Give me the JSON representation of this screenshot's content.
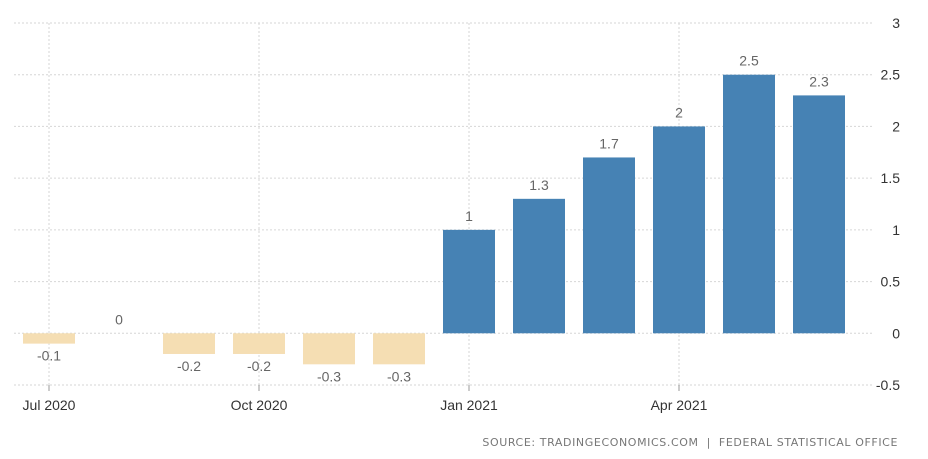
{
  "chart_data": {
    "type": "bar",
    "categories": [
      "2020-07",
      "2020-08",
      "2020-09",
      "2020-10",
      "2020-11",
      "2020-12",
      "2021-01",
      "2021-02",
      "2021-03",
      "2021-04",
      "2021-05",
      "2021-06"
    ],
    "values": [
      -0.1,
      0,
      -0.2,
      -0.2,
      -0.3,
      -0.3,
      1,
      1.3,
      1.7,
      2,
      2.5,
      2.3
    ],
    "value_labels": [
      "-0.1",
      "0",
      "-0.2",
      "-0.2",
      "-0.3",
      "-0.3",
      "1",
      "1.3",
      "1.7",
      "2",
      "2.5",
      "2.3"
    ],
    "x_tick_labels": [
      {
        "category": "2020-07",
        "label": "Jul 2020"
      },
      {
        "category": "2020-10",
        "label": "Oct 2020"
      },
      {
        "category": "2021-01",
        "label": "Jan 2021"
      },
      {
        "category": "2021-04",
        "label": "Apr 2021"
      }
    ],
    "y_ticks": [
      3,
      2.5,
      2,
      1.5,
      1,
      0.5,
      0,
      -0.5
    ],
    "y_tick_labels": [
      "3",
      "2.5",
      "2",
      "1.5",
      "1",
      "0.5",
      "0",
      "-0.5"
    ],
    "ylim": [
      -0.5,
      3
    ],
    "y_axis_side": "right",
    "grid": true,
    "title": "",
    "xlabel": "",
    "ylabel": "",
    "colors": {
      "positive": "#4682b4",
      "negative": "#f5deb3",
      "grid": "#d6d6d6",
      "text": "#666666"
    }
  },
  "source": {
    "left": "SOURCE: TRADINGECONOMICS.COM",
    "separator": "|",
    "right": "FEDERAL STATISTICAL OFFICE"
  }
}
